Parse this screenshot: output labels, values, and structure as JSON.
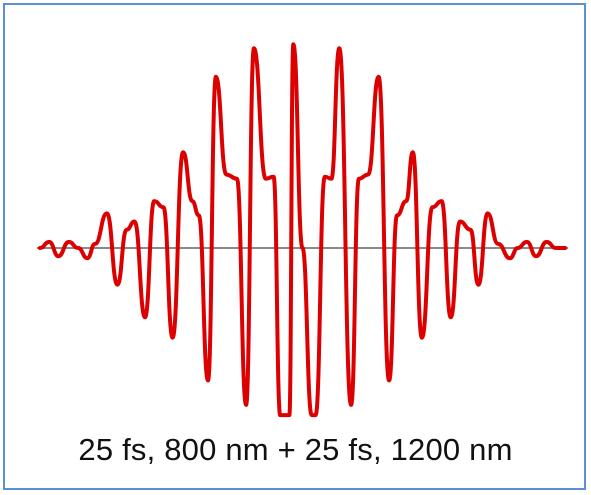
{
  "chart_data": {
    "type": "line",
    "title": "",
    "caption": "25 fs, 800 nm + 25 fs, 1200 nm",
    "xlabel": "",
    "ylabel": "",
    "axes_visible": false,
    "baseline": true,
    "grid": false,
    "legend": "none",
    "ylim": [
      -1.05,
      1.05
    ],
    "series": [
      {
        "color": "#dd0000",
        "x": [
          -1.0,
          -0.965,
          -0.93,
          -0.89,
          -0.855,
          -0.82,
          -0.79,
          -0.745,
          -0.705,
          -0.67,
          -0.64,
          -0.6,
          -0.565,
          -0.53,
          -0.495,
          -0.455,
          -0.42,
          -0.395,
          -0.36,
          -0.33,
          -0.29,
          -0.25,
          -0.215,
          -0.185,
          -0.14,
          -0.11,
          -0.085,
          -0.05,
          -0.035,
          0.0,
          0.035,
          0.05,
          0.085,
          0.11,
          0.14,
          0.185,
          0.215,
          0.25,
          0.29,
          0.33,
          0.36,
          0.395,
          0.42,
          0.455,
          0.495,
          0.53,
          0.565,
          0.6,
          0.64,
          0.67,
          0.705,
          0.745,
          0.79,
          0.82,
          0.855,
          0.89,
          0.93,
          0.965,
          1.0
        ],
        "y": [
          0.0,
          0.03,
          -0.04,
          0.03,
          0.0,
          -0.05,
          0.02,
          0.17,
          -0.18,
          0.09,
          0.13,
          -0.34,
          0.23,
          0.2,
          -0.44,
          0.47,
          0.23,
          0.16,
          -0.65,
          0.84,
          0.36,
          0.34,
          -0.77,
          0.98,
          0.34,
          0.35,
          -0.82,
          -0.82,
          1.0,
          0.0,
          -0.82,
          -0.82,
          0.35,
          0.34,
          0.98,
          -0.77,
          0.34,
          0.36,
          0.84,
          -0.65,
          0.16,
          0.23,
          0.47,
          -0.44,
          0.2,
          0.23,
          -0.34,
          0.13,
          0.09,
          -0.18,
          0.17,
          0.02,
          -0.05,
          0.0,
          0.03,
          -0.04,
          0.03,
          0.0,
          0.0
        ]
      }
    ]
  }
}
